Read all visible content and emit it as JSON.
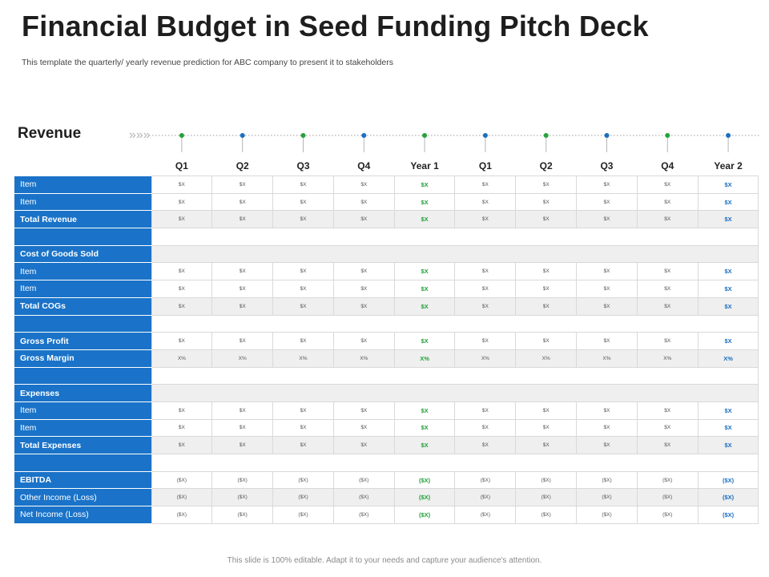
{
  "title": "Financial Budget in Seed Funding Pitch Deck",
  "subtitle": "This template the quarterly/ yearly revenue prediction for ABC company to present it to stakeholders",
  "revenue_label": "Revenue",
  "chevrons": "»»»",
  "columns": [
    "Q1",
    "Q2",
    "Q3",
    "Q4",
    "Year 1",
    "Q1",
    "Q2",
    "Q3",
    "Q4",
    "Year 2"
  ],
  "timeline_dot_colors": [
    "#23a33a",
    "#1a6fc2",
    "#23a33a",
    "#1a6fc2",
    "#23a33a",
    "#1a6fc2",
    "#23a33a",
    "#1a6fc2",
    "#23a33a",
    "#1a6fc2"
  ],
  "colors": {
    "label_bg": "#1a73c8",
    "year1": "#23a33a",
    "year2": "#1a6fc2"
  },
  "rows": [
    {
      "label": "Item",
      "type": "item",
      "values": [
        "$X",
        "$X",
        "$X",
        "$X",
        "$X",
        "$X",
        "$X",
        "$X",
        "$X",
        "$X"
      ]
    },
    {
      "label": "Item",
      "type": "item",
      "values": [
        "$X",
        "$X",
        "$X",
        "$X",
        "$X",
        "$X",
        "$X",
        "$X",
        "$X",
        "$X"
      ]
    },
    {
      "label": "Total Revenue",
      "type": "total",
      "values": [
        "$X",
        "$X",
        "$X",
        "$X",
        "$X",
        "$X",
        "$X",
        "$X",
        "$X",
        "$X"
      ]
    },
    {
      "label": "",
      "type": "blank",
      "values": []
    },
    {
      "label": "Cost of Goods Sold",
      "type": "section",
      "values": []
    },
    {
      "label": "Item",
      "type": "item",
      "values": [
        "$X",
        "$X",
        "$X",
        "$X",
        "$X",
        "$X",
        "$X",
        "$X",
        "$X",
        "$X"
      ]
    },
    {
      "label": "Item",
      "type": "item",
      "values": [
        "$X",
        "$X",
        "$X",
        "$X",
        "$X",
        "$X",
        "$X",
        "$X",
        "$X",
        "$X"
      ]
    },
    {
      "label": "Total COGs",
      "type": "total",
      "values": [
        "$X",
        "$X",
        "$X",
        "$X",
        "$X",
        "$X",
        "$X",
        "$X",
        "$X",
        "$X"
      ]
    },
    {
      "label": "",
      "type": "blank",
      "values": []
    },
    {
      "label": "Gross Profit",
      "type": "total",
      "values": [
        "$X",
        "$X",
        "$X",
        "$X",
        "$X",
        "$X",
        "$X",
        "$X",
        "$X",
        "$X"
      ]
    },
    {
      "label": "Gross Margin",
      "type": "total",
      "values": [
        "X%",
        "X%",
        "X%",
        "X%",
        "X%",
        "X%",
        "X%",
        "X%",
        "X%",
        "X%"
      ]
    },
    {
      "label": "",
      "type": "blank",
      "values": []
    },
    {
      "label": "Expenses",
      "type": "section",
      "values": []
    },
    {
      "label": "Item",
      "type": "item",
      "values": [
        "$X",
        "$X",
        "$X",
        "$X",
        "$X",
        "$X",
        "$X",
        "$X",
        "$X",
        "$X"
      ]
    },
    {
      "label": "Item",
      "type": "item",
      "values": [
        "$X",
        "$X",
        "$X",
        "$X",
        "$X",
        "$X",
        "$X",
        "$X",
        "$X",
        "$X"
      ]
    },
    {
      "label": "Total Expenses",
      "type": "total",
      "values": [
        "$X",
        "$X",
        "$X",
        "$X",
        "$X",
        "$X",
        "$X",
        "$X",
        "$X",
        "$X"
      ]
    },
    {
      "label": "",
      "type": "blank",
      "values": []
    },
    {
      "label": "EBITDA",
      "type": "total",
      "values": [
        "($X)",
        "($X)",
        "($X)",
        "($X)",
        "($X)",
        "($X)",
        "($X)",
        "($X)",
        "($X)",
        "($X)"
      ]
    },
    {
      "label": "Other Income (Loss)",
      "type": "item",
      "values": [
        "($X)",
        "($X)",
        "($X)",
        "($X)",
        "($X)",
        "($X)",
        "($X)",
        "($X)",
        "($X)",
        "($X)"
      ]
    },
    {
      "label": "Net Income (Loss)",
      "type": "item",
      "values": [
        "($X)",
        "($X)",
        "($X)",
        "($X)",
        "($X)",
        "($X)",
        "($X)",
        "($X)",
        "($X)",
        "($X)"
      ]
    }
  ],
  "footer": "This slide is 100% editable. Adapt it to your needs and capture your audience's attention."
}
